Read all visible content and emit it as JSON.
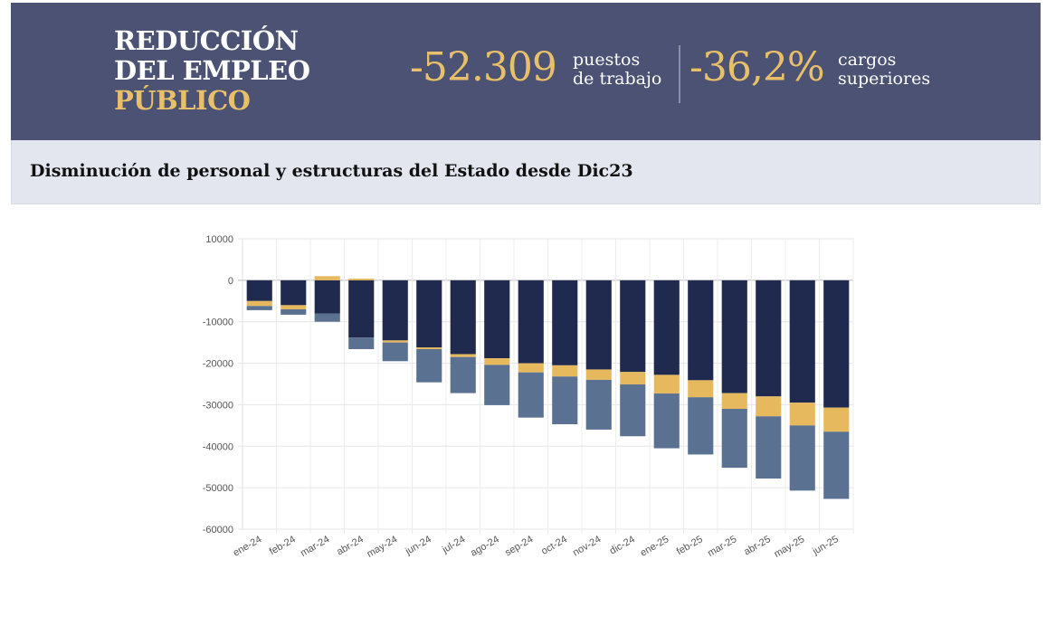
{
  "header": {
    "title_line1": "REDUCCIÓN",
    "title_line2": "DEL EMPLEO",
    "title_line3": "PÚBLICO",
    "stat1_value": "-52.309",
    "stat1_label": "puestos\nde trabajo",
    "stat2_value": "-36,2%",
    "stat2_label": "cargos\nsuperiores"
  },
  "subtitle": "Disminución de personal y estructuras del Estado desde Dic23",
  "colors": {
    "banner_bg": "#4b5273",
    "gold": "#e9c06a",
    "series_navy": "#1f2a4e",
    "series_gold": "#e7b95f",
    "series_slate": "#5b7191"
  },
  "chart_data": {
    "type": "bar",
    "stacked": true,
    "categories": [
      "ene-24",
      "feb-24",
      "mar-24",
      "abr-24",
      "may-24",
      "jun-24",
      "jul-24",
      "ago-24",
      "sep-24",
      "oct-24",
      "nov-24",
      "dic-24",
      "ene-25",
      "feb-25",
      "mar-25",
      "abr-25",
      "may-25",
      "jun-25"
    ],
    "series": [
      {
        "color": "#1f2a4e",
        "values": [
          -5000,
          -6000,
          -8000,
          -13800,
          -14500,
          -16200,
          -17800,
          -18800,
          -20000,
          -20500,
          -21500,
          -22100,
          -22800,
          -24100,
          -27200,
          -28000,
          -29500,
          -30700
        ]
      },
      {
        "color": "#e7b95f",
        "values": [
          -1200,
          -1000,
          1000,
          400,
          -500,
          -400,
          -700,
          -1600,
          -2200,
          -2700,
          -2500,
          -3000,
          -4500,
          -4100,
          -3800,
          -4800,
          -5500,
          -5800
        ]
      },
      {
        "color": "#5b7191",
        "values": [
          -1000,
          -1300,
          -2000,
          -2800,
          -4500,
          -8000,
          -8700,
          -9700,
          -10900,
          -11500,
          -12000,
          -12500,
          -13200,
          -13800,
          -14200,
          -15000,
          -15700,
          -16200
        ]
      }
    ],
    "ylim": [
      -60000,
      10000
    ],
    "yticks": [
      10000,
      0,
      -10000,
      -20000,
      -30000,
      -40000,
      -50000,
      -60000
    ],
    "grid": true,
    "xlabel": "",
    "ylabel": ""
  }
}
